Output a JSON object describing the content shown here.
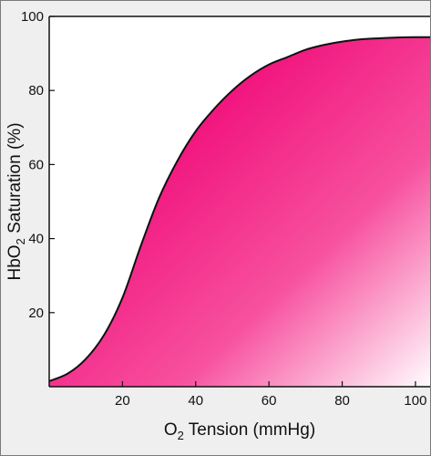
{
  "colors": {
    "fill_dark": "#f00a78",
    "fill_light": "#ffffff",
    "curve": "#111111",
    "panel_bg": "#efefef",
    "plot_bg": "#ffffff"
  },
  "chart_data": {
    "type": "area",
    "title": "",
    "xlabel": {
      "main": "O",
      "sub": "2",
      "rest": " Tension (mmHg)"
    },
    "ylabel": {
      "pre": "HbO",
      "sub": "2",
      "rest": " Saturation (%)"
    },
    "xlim": [
      0,
      104
    ],
    "ylim": [
      0,
      100
    ],
    "x_ticks": [
      20,
      40,
      60,
      80,
      100
    ],
    "x_tick_labels": [
      "20",
      "40",
      "60",
      "80",
      "100"
    ],
    "y_ticks": [
      20,
      40,
      60,
      80,
      100
    ],
    "y_tick_labels": [
      "20",
      "40",
      "60",
      "80",
      "100"
    ],
    "grid": false,
    "legend": "none",
    "series": [
      {
        "x": [
          0,
          5,
          10,
          15,
          20,
          25,
          30,
          35,
          40,
          45,
          50,
          55,
          60,
          65,
          70,
          75,
          80,
          85,
          90,
          95,
          100,
          104
        ],
        "values": [
          1.5,
          3.5,
          7.5,
          14,
          24,
          38,
          51,
          61,
          69,
          75,
          80,
          84,
          87,
          89,
          91,
          92.3,
          93.2,
          93.8,
          94.1,
          94.3,
          94.4,
          94.4
        ]
      }
    ]
  }
}
